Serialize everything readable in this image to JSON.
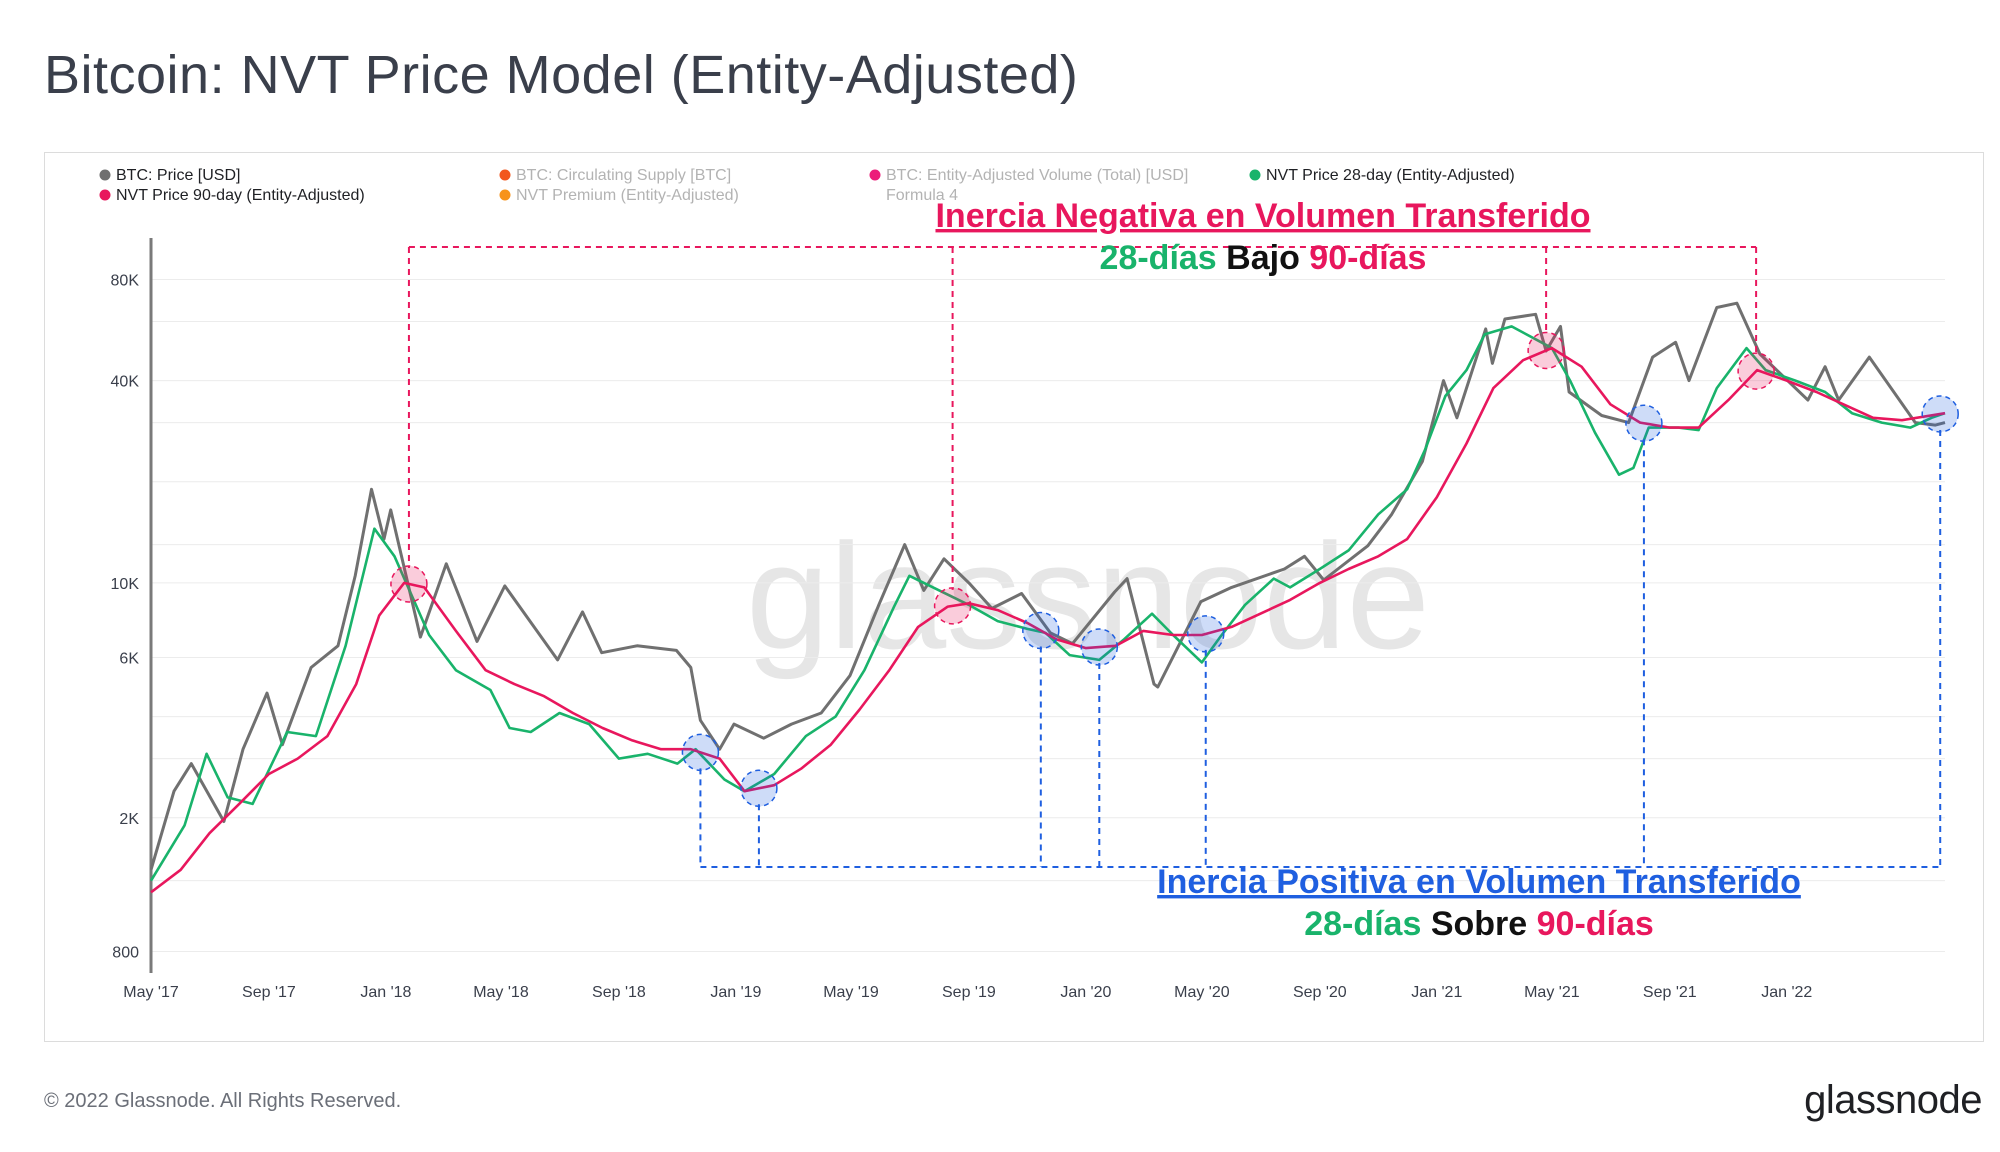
{
  "header": {
    "title": "Bitcoin: NVT Price Model (Entity-Adjusted)"
  },
  "footer": {
    "copyright": "© 2022 Glassnode. All Rights Reserved.",
    "logo_text": "glassnode"
  },
  "watermark": "glassnode",
  "colors": {
    "price": "#707070",
    "nvt28": "#19b36b",
    "nvt90": "#e8175d",
    "neg": "#e8175d",
    "pos": "#1f5fe0",
    "supply": "#f2561d",
    "premium": "#f7931a",
    "volume": "#ec1c7a",
    "text": "#1f2024",
    "dim": "#b3b3b3"
  },
  "legend": [
    {
      "label": "BTC: Price [USD]",
      "color": "#707070",
      "active": true
    },
    {
      "label": "BTC: Circulating Supply [BTC]",
      "color": "#f2561d",
      "active": false
    },
    {
      "label": "BTC: Entity-Adjusted Volume (Total) [USD]",
      "color": "#ec1c7a",
      "active": false,
      "sub": "Formula 4"
    },
    {
      "label": "NVT Price 28-day (Entity-Adjusted)",
      "color": "#19b36b",
      "active": true
    },
    {
      "label": "NVT Price 90-day (Entity-Adjusted)",
      "color": "#e8175d",
      "active": true
    },
    {
      "label": "NVT Premium (Entity-Adjusted)",
      "color": "#f7931a",
      "active": false
    }
  ],
  "annotations": {
    "negative": {
      "title": "Inercia Negativa en Volumen Transferido",
      "w1": "28-días",
      "w2": "Bajo",
      "w3": "90-días"
    },
    "positive": {
      "title": "Inercia Positiva en Volumen Transferido",
      "w1": "28-días",
      "w2": "Sobre",
      "w3": "90-días"
    }
  },
  "chart_data": {
    "type": "line",
    "y_scale": "log",
    "ylim": [
      700,
      110000
    ],
    "y_ticks": [
      {
        "v": 800,
        "label": "800"
      },
      {
        "v": 2000,
        "label": "2K"
      },
      {
        "v": 6000,
        "label": "6K"
      },
      {
        "v": 10000,
        "label": "10K"
      },
      {
        "v": 40000,
        "label": "40K"
      },
      {
        "v": 80000,
        "label": "80K"
      }
    ],
    "x_range": [
      "2017-05-01",
      "2022-06-15"
    ],
    "x_ticks": [
      {
        "date": "2017-05-01",
        "label": "May '17"
      },
      {
        "date": "2017-09-01",
        "label": "Sep '17"
      },
      {
        "date": "2018-01-01",
        "label": "Jan '18"
      },
      {
        "date": "2018-05-01",
        "label": "May '18"
      },
      {
        "date": "2018-09-01",
        "label": "Sep '18"
      },
      {
        "date": "2019-01-01",
        "label": "Jan '19"
      },
      {
        "date": "2019-05-01",
        "label": "May '19"
      },
      {
        "date": "2019-09-01",
        "label": "Sep '19"
      },
      {
        "date": "2020-01-01",
        "label": "Jan '20"
      },
      {
        "date": "2020-05-01",
        "label": "May '20"
      },
      {
        "date": "2020-09-01",
        "label": "Sep '20"
      },
      {
        "date": "2021-01-01",
        "label": "Jan '21"
      },
      {
        "date": "2021-05-01",
        "label": "May '21"
      },
      {
        "date": "2021-09-01",
        "label": "Sep '21"
      },
      {
        "date": "2022-01-01",
        "label": "Jan '22"
      }
    ],
    "series": [
      {
        "name": "BTC: Price [USD]",
        "key": "price",
        "points": [
          [
            "2017-05-01",
            1400
          ],
          [
            "2017-05-25",
            2400
          ],
          [
            "2017-06-12",
            2900
          ],
          [
            "2017-07-16",
            1950
          ],
          [
            "2017-08-05",
            3200
          ],
          [
            "2017-08-30",
            4700
          ],
          [
            "2017-09-15",
            3300
          ],
          [
            "2017-10-15",
            5600
          ],
          [
            "2017-11-12",
            6500
          ],
          [
            "2017-11-30",
            10500
          ],
          [
            "2017-12-17",
            19000
          ],
          [
            "2017-12-30",
            13500
          ],
          [
            "2018-01-06",
            16500
          ],
          [
            "2018-02-06",
            6900
          ],
          [
            "2018-03-05",
            11400
          ],
          [
            "2018-04-06",
            6700
          ],
          [
            "2018-05-05",
            9800
          ],
          [
            "2018-06-29",
            5900
          ],
          [
            "2018-07-25",
            8200
          ],
          [
            "2018-08-14",
            6200
          ],
          [
            "2018-09-20",
            6500
          ],
          [
            "2018-10-31",
            6300
          ],
          [
            "2018-11-15",
            5600
          ],
          [
            "2018-11-25",
            3900
          ],
          [
            "2018-12-15",
            3200
          ],
          [
            "2018-12-30",
            3800
          ],
          [
            "2019-01-30",
            3450
          ],
          [
            "2019-02-28",
            3800
          ],
          [
            "2019-03-31",
            4100
          ],
          [
            "2019-04-30",
            5300
          ],
          [
            "2019-05-30",
            8600
          ],
          [
            "2019-06-26",
            13000
          ],
          [
            "2019-07-16",
            9500
          ],
          [
            "2019-08-06",
            11800
          ],
          [
            "2019-09-01",
            10000
          ],
          [
            "2019-09-25",
            8400
          ],
          [
            "2019-10-26",
            9300
          ],
          [
            "2019-11-25",
            7100
          ],
          [
            "2019-12-18",
            6600
          ],
          [
            "2020-01-31",
            9400
          ],
          [
            "2020-02-13",
            10300
          ],
          [
            "2020-03-12",
            5000
          ],
          [
            "2020-03-16",
            4900
          ],
          [
            "2020-04-30",
            8800
          ],
          [
            "2020-06-01",
            9700
          ],
          [
            "2020-07-26",
            11000
          ],
          [
            "2020-08-16",
            12000
          ],
          [
            "2020-09-05",
            10200
          ],
          [
            "2020-10-21",
            12900
          ],
          [
            "2020-11-15",
            16000
          ],
          [
            "2020-12-17",
            23000
          ],
          [
            "2021-01-08",
            40000
          ],
          [
            "2021-01-22",
            31000
          ],
          [
            "2021-02-21",
            57000
          ],
          [
            "2021-02-28",
            45000
          ],
          [
            "2021-03-13",
            61000
          ],
          [
            "2021-04-14",
            63000
          ],
          [
            "2021-04-25",
            49000
          ],
          [
            "2021-05-10",
            58000
          ],
          [
            "2021-05-19",
            37000
          ],
          [
            "2021-06-22",
            31500
          ],
          [
            "2021-07-20",
            30000
          ],
          [
            "2021-08-14",
            47000
          ],
          [
            "2021-09-07",
            52000
          ],
          [
            "2021-09-21",
            40000
          ],
          [
            "2021-10-20",
            66000
          ],
          [
            "2021-11-10",
            68000
          ],
          [
            "2021-12-04",
            48000
          ],
          [
            "2022-01-23",
            35000
          ],
          [
            "2022-02-10",
            44000
          ],
          [
            "2022-02-24",
            35000
          ],
          [
            "2022-03-28",
            47000
          ],
          [
            "2022-05-15",
            30000
          ],
          [
            "2022-06-05",
            29500
          ],
          [
            "2022-06-15",
            30000
          ]
        ]
      },
      {
        "name": "NVT Price 28-day (Entity-Adjusted)",
        "key": "nvt28",
        "points": [
          [
            "2017-05-01",
            1300
          ],
          [
            "2017-06-05",
            1900
          ],
          [
            "2017-06-28",
            3100
          ],
          [
            "2017-07-20",
            2300
          ],
          [
            "2017-08-15",
            2200
          ],
          [
            "2017-09-20",
            3600
          ],
          [
            "2017-10-20",
            3500
          ],
          [
            "2017-11-20",
            6500
          ],
          [
            "2017-12-20",
            14500
          ],
          [
            "2018-01-10",
            12000
          ],
          [
            "2018-02-15",
            7000
          ],
          [
            "2018-03-15",
            5500
          ],
          [
            "2018-04-20",
            4800
          ],
          [
            "2018-05-10",
            3700
          ],
          [
            "2018-06-01",
            3600
          ],
          [
            "2018-07-01",
            4100
          ],
          [
            "2018-08-01",
            3800
          ],
          [
            "2018-09-01",
            3000
          ],
          [
            "2018-10-01",
            3100
          ],
          [
            "2018-11-01",
            2900
          ],
          [
            "2018-11-20",
            3200
          ],
          [
            "2018-12-20",
            2600
          ],
          [
            "2019-01-10",
            2400
          ],
          [
            "2019-02-10",
            2700
          ],
          [
            "2019-03-15",
            3500
          ],
          [
            "2019-04-15",
            4000
          ],
          [
            "2019-05-15",
            5500
          ],
          [
            "2019-06-15",
            8500
          ],
          [
            "2019-07-01",
            10500
          ],
          [
            "2019-08-01",
            9500
          ],
          [
            "2019-09-01",
            8600
          ],
          [
            "2019-10-01",
            7700
          ],
          [
            "2019-11-01",
            7300
          ],
          [
            "2019-11-20",
            7100
          ],
          [
            "2019-12-15",
            6100
          ],
          [
            "2020-01-15",
            5900
          ],
          [
            "2020-02-10",
            6800
          ],
          [
            "2020-03-10",
            8100
          ],
          [
            "2020-04-01",
            7000
          ],
          [
            "2020-05-01",
            5800
          ],
          [
            "2020-05-20",
            6900
          ],
          [
            "2020-06-15",
            8600
          ],
          [
            "2020-07-15",
            10300
          ],
          [
            "2020-08-01",
            9700
          ],
          [
            "2020-09-01",
            11000
          ],
          [
            "2020-10-01",
            12500
          ],
          [
            "2020-11-01",
            16000
          ],
          [
            "2020-12-01",
            19000
          ],
          [
            "2020-12-20",
            25000
          ],
          [
            "2021-01-10",
            36000
          ],
          [
            "2021-02-01",
            43000
          ],
          [
            "2021-02-20",
            55000
          ],
          [
            "2021-03-20",
            58000
          ],
          [
            "2021-04-20",
            52000
          ],
          [
            "2021-05-01",
            50000
          ],
          [
            "2021-05-20",
            40000
          ],
          [
            "2021-06-15",
            28000
          ],
          [
            "2021-07-10",
            21000
          ],
          [
            "2021-07-25",
            22000
          ],
          [
            "2021-08-10",
            29000
          ],
          [
            "2021-09-10",
            29000
          ],
          [
            "2021-10-01",
            28500
          ],
          [
            "2021-10-20",
            38000
          ],
          [
            "2021-11-20",
            50000
          ],
          [
            "2021-12-10",
            43000
          ],
          [
            "2022-01-10",
            40000
          ],
          [
            "2022-02-10",
            37000
          ],
          [
            "2022-03-10",
            32000
          ],
          [
            "2022-04-10",
            30000
          ],
          [
            "2022-05-10",
            29000
          ],
          [
            "2022-06-01",
            31000
          ],
          [
            "2022-06-15",
            32000
          ]
        ]
      },
      {
        "name": "NVT Price 90-day (Entity-Adjusted)",
        "key": "nvt90",
        "points": [
          [
            "2017-05-01",
            1200
          ],
          [
            "2017-06-01",
            1400
          ],
          [
            "2017-07-01",
            1800
          ],
          [
            "2017-08-01",
            2200
          ],
          [
            "2017-09-01",
            2700
          ],
          [
            "2017-10-01",
            3000
          ],
          [
            "2017-11-01",
            3500
          ],
          [
            "2017-12-01",
            5000
          ],
          [
            "2017-12-25",
            8000
          ],
          [
            "2018-01-20",
            10000
          ],
          [
            "2018-02-10",
            9700
          ],
          [
            "2018-03-15",
            7200
          ],
          [
            "2018-04-15",
            5500
          ],
          [
            "2018-05-15",
            5000
          ],
          [
            "2018-06-15",
            4600
          ],
          [
            "2018-07-15",
            4100
          ],
          [
            "2018-08-15",
            3700
          ],
          [
            "2018-09-15",
            3400
          ],
          [
            "2018-10-15",
            3200
          ],
          [
            "2018-11-15",
            3200
          ],
          [
            "2018-12-15",
            3000
          ],
          [
            "2019-01-10",
            2400
          ],
          [
            "2019-02-10",
            2500
          ],
          [
            "2019-03-10",
            2800
          ],
          [
            "2019-04-10",
            3300
          ],
          [
            "2019-05-10",
            4200
          ],
          [
            "2019-06-10",
            5500
          ],
          [
            "2019-07-10",
            7400
          ],
          [
            "2019-08-10",
            8500
          ],
          [
            "2019-09-01",
            8700
          ],
          [
            "2019-10-01",
            8300
          ],
          [
            "2019-11-01",
            7600
          ],
          [
            "2019-12-01",
            6800
          ],
          [
            "2020-01-01",
            6400
          ],
          [
            "2020-02-01",
            6500
          ],
          [
            "2020-03-01",
            7200
          ],
          [
            "2020-04-01",
            7000
          ],
          [
            "2020-05-01",
            7000
          ],
          [
            "2020-06-01",
            7400
          ],
          [
            "2020-07-01",
            8100
          ],
          [
            "2020-08-01",
            8900
          ],
          [
            "2020-09-01",
            10000
          ],
          [
            "2020-10-01",
            11000
          ],
          [
            "2020-11-01",
            12000
          ],
          [
            "2020-12-01",
            13500
          ],
          [
            "2021-01-01",
            18000
          ],
          [
            "2021-02-01",
            26000
          ],
          [
            "2021-03-01",
            38000
          ],
          [
            "2021-04-01",
            46000
          ],
          [
            "2021-05-01",
            50000
          ],
          [
            "2021-06-01",
            44000
          ],
          [
            "2021-07-01",
            34000
          ],
          [
            "2021-08-01",
            30000
          ],
          [
            "2021-09-01",
            29000
          ],
          [
            "2021-10-01",
            29000
          ],
          [
            "2021-11-01",
            35000
          ],
          [
            "2021-12-01",
            43000
          ],
          [
            "2022-01-01",
            40000
          ],
          [
            "2022-02-01",
            37000
          ],
          [
            "2022-03-01",
            34000
          ],
          [
            "2022-04-01",
            31000
          ],
          [
            "2022-05-01",
            30500
          ],
          [
            "2022-06-15",
            32000
          ]
        ]
      }
    ],
    "negative_crossovers": [
      "2018-01-25",
      "2019-08-15",
      "2021-04-25",
      "2021-11-30"
    ],
    "positive_crossovers": [
      "2018-11-25",
      "2019-01-25",
      "2019-11-15",
      "2020-01-15",
      "2020-05-05",
      "2021-08-05",
      "2022-06-10"
    ]
  }
}
